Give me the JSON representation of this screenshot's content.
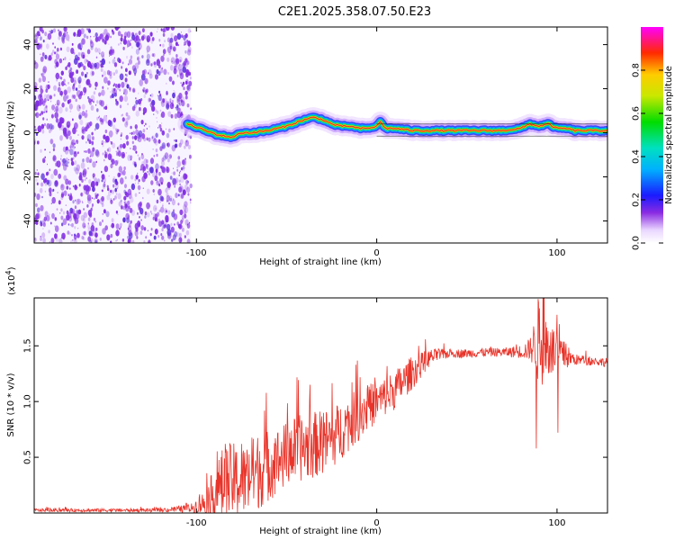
{
  "figure_title": "C2E1.2025.358.07.50.E23",
  "colors": {
    "snr_line": "#e8342a",
    "trace_core": "#e8342a",
    "noise": "#7a1fe0"
  },
  "chart_data": [
    {
      "type": "heatmap",
      "title": "C2E1.2025.358.07.50.E23",
      "xlabel": "Height of straight line (km)",
      "ylabel": "Frequency (Hz)",
      "xlim": [
        -190,
        128
      ],
      "ylim": [
        -50,
        48
      ],
      "x_ticks": [
        -100,
        0,
        100
      ],
      "y_ticks": [
        -40,
        -20,
        0,
        20,
        40
      ],
      "colorbar": {
        "label": "Normalized spectral amplitude",
        "range": [
          0,
          1
        ],
        "ticks": [
          "0.0",
          "0.2",
          "0.4",
          "0.6",
          "0.8"
        ]
      },
      "noise_region_x": [
        -190,
        -103
      ],
      "trace": {
        "x": [
          -105,
          -95,
          -88,
          -80,
          -75,
          -70,
          -60,
          -50,
          -40,
          -35,
          -30,
          -25,
          -20,
          -15,
          -10,
          -5,
          0,
          2,
          5,
          10,
          20,
          30,
          40,
          50,
          60,
          70,
          80,
          85,
          90,
          95,
          100,
          105,
          110,
          120,
          128
        ],
        "y": [
          4,
          1,
          -1,
          -2,
          0,
          0,
          1,
          3,
          6,
          7,
          6,
          4,
          3,
          3,
          2,
          2,
          3,
          5,
          2,
          2,
          1,
          1,
          1,
          1,
          1,
          1,
          2,
          4,
          3,
          4,
          2,
          2,
          1,
          1,
          1
        ]
      }
    },
    {
      "type": "line",
      "xlabel": "Height of straight line (km)",
      "ylabel": "SNR (10 * v/v)",
      "y_scale_label": "(x10",
      "y_scale_exp": "4",
      "xlim": [
        -190,
        128
      ],
      "ylim": [
        0,
        1.93
      ],
      "x_ticks": [
        -100,
        0,
        100
      ],
      "y_ticks": [
        0.5,
        1.0,
        1.5
      ],
      "y_tick_labels": [
        "0.5",
        "1.0",
        "1.5"
      ],
      "envelope": {
        "x": [
          -190,
          -120,
          -103,
          -95,
          -85,
          -80,
          -75,
          -65,
          -55,
          -45,
          -35,
          -25,
          -15,
          -5,
          0,
          10,
          20,
          30,
          40,
          50,
          60,
          70,
          80,
          85,
          88,
          90,
          95,
          100,
          110,
          120,
          128
        ],
        "base": [
          0.02,
          0.02,
          0.03,
          0.06,
          0.15,
          0.18,
          0.18,
          0.28,
          0.38,
          0.48,
          0.52,
          0.58,
          0.74,
          0.88,
          0.94,
          1.05,
          1.22,
          1.38,
          1.42,
          1.42,
          1.43,
          1.43,
          1.43,
          1.44,
          1.45,
          1.42,
          1.4,
          1.38,
          1.36,
          1.35,
          1.34
        ],
        "amp": [
          0.015,
          0.015,
          0.04,
          0.12,
          0.35,
          0.35,
          0.32,
          0.35,
          0.3,
          0.3,
          0.3,
          0.28,
          0.25,
          0.22,
          0.18,
          0.18,
          0.15,
          0.07,
          0.04,
          0.04,
          0.04,
          0.04,
          0.06,
          0.1,
          0.25,
          0.45,
          0.3,
          0.18,
          0.05,
          0.04,
          0.04
        ]
      },
      "spikes": [
        {
          "x": 88.5,
          "y": 0.58
        },
        {
          "x": 89.5,
          "y": 1.92
        },
        {
          "x": 100.5,
          "y": 0.72
        },
        {
          "x": -84,
          "y": 0.62
        },
        {
          "x": -75,
          "y": 0.62
        }
      ]
    }
  ]
}
